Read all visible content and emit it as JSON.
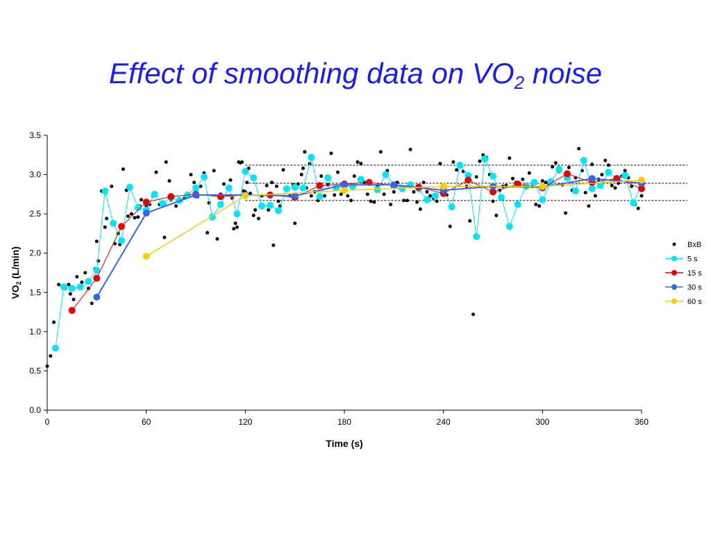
{
  "title": {
    "main": "Effect of smoothing data on VO",
    "sub": "2",
    "tail": " noise"
  },
  "chart_data": {
    "type": "scatter",
    "xlabel": "Time (s)",
    "ylabel_main": "VO",
    "ylabel_sub": "2",
    "ylabel_tail": " (L/min)",
    "xlim": [
      0,
      360
    ],
    "ylim": [
      0,
      3.5
    ],
    "x_ticks": [
      "0",
      "60",
      "120",
      "180",
      "240",
      "300",
      "360"
    ],
    "y_ticks": [
      "0.0",
      "0.5",
      "1.0",
      "1.5",
      "2.0",
      "2.5",
      "3.0",
      "3.5"
    ],
    "grid": false,
    "legend_position": "right",
    "reference_lines": [
      2.67,
      2.89,
      3.12
    ],
    "colors": {
      "bxb": "#000000",
      "s5": "#00e5ff",
      "s15": "#e60000",
      "s30": "#3366ee",
      "s60": "#ffcc00"
    },
    "series": [
      {
        "name": "BxB",
        "style": "markers",
        "points": [
          [
            0,
            0.56
          ],
          [
            2,
            0.69
          ],
          [
            4,
            1.12
          ],
          [
            7,
            1.6
          ],
          [
            9,
            1.58
          ],
          [
            11,
            1.55
          ],
          [
            13,
            1.6
          ],
          [
            14,
            1.48
          ],
          [
            16,
            1.41
          ],
          [
            18,
            1.7
          ],
          [
            21,
            1.63
          ],
          [
            23,
            1.75
          ],
          [
            25,
            1.55
          ],
          [
            27,
            1.36
          ],
          [
            29,
            1.8
          ],
          [
            30,
            2.15
          ],
          [
            31,
            1.9
          ],
          [
            33,
            2.79
          ],
          [
            35,
            2.33
          ],
          [
            36,
            2.44
          ],
          [
            39,
            2.85
          ],
          [
            41,
            2.12
          ],
          [
            43,
            2.25
          ],
          [
            44,
            2.11
          ],
          [
            46,
            3.07
          ],
          [
            48,
            2.8
          ],
          [
            49,
            2.47
          ],
          [
            51,
            2.5
          ],
          [
            53,
            2.45
          ],
          [
            55,
            2.46
          ],
          [
            56,
            2.6
          ],
          [
            57,
            2.68
          ],
          [
            60,
            2.6
          ],
          [
            62,
            2.62
          ],
          [
            64,
            2.73
          ],
          [
            66,
            3.03
          ],
          [
            68,
            2.62
          ],
          [
            71,
            2.2
          ],
          [
            72,
            3.16
          ],
          [
            74,
            2.92
          ],
          [
            75,
            2.68
          ],
          [
            78,
            2.6
          ],
          [
            81,
            2.67
          ],
          [
            83,
            2.7
          ],
          [
            85,
            2.75
          ],
          [
            87,
            3.0
          ],
          [
            89,
            2.9
          ],
          [
            91,
            2.72
          ],
          [
            93,
            2.85
          ],
          [
            95,
            3.02
          ],
          [
            97,
            2.26
          ],
          [
            98,
            2.64
          ],
          [
            101,
            3.05
          ],
          [
            103,
            2.18
          ],
          [
            105,
            2.75
          ],
          [
            107,
            2.88
          ],
          [
            110,
            2.85
          ],
          [
            111,
            2.93
          ],
          [
            112,
            2.7
          ],
          [
            113,
            2.31
          ],
          [
            114,
            2.38
          ],
          [
            115,
            2.33
          ],
          [
            116,
            3.16
          ],
          [
            117,
            3.15
          ],
          [
            118,
            3.16
          ],
          [
            119,
            2.79
          ],
          [
            120,
            2.78
          ],
          [
            121,
            2.9
          ],
          [
            122,
            3.08
          ],
          [
            123,
            2.76
          ],
          [
            125,
            2.48
          ],
          [
            126,
            2.55
          ],
          [
            128,
            2.44
          ],
          [
            130,
            2.73
          ],
          [
            131,
            2.6
          ],
          [
            133,
            2.86
          ],
          [
            134,
            2.55
          ],
          [
            136,
            2.9
          ],
          [
            137,
            2.1
          ],
          [
            139,
            2.85
          ],
          [
            140,
            2.66
          ],
          [
            141,
            2.6
          ],
          [
            143,
            3.06
          ],
          [
            145,
            2.82
          ],
          [
            147,
            2.73
          ],
          [
            149,
            2.87
          ],
          [
            150,
            2.38
          ],
          [
            152,
            2.88
          ],
          [
            154,
            3.0
          ],
          [
            155,
            3.08
          ],
          [
            156,
            3.29
          ],
          [
            157,
            2.83
          ],
          [
            159,
            3.14
          ],
          [
            160,
            2.73
          ],
          [
            162,
            2.78
          ],
          [
            164,
            2.67
          ],
          [
            166,
            2.98
          ],
          [
            168,
            2.73
          ],
          [
            170,
            2.87
          ],
          [
            172,
            3.27
          ],
          [
            174,
            2.74
          ],
          [
            176,
            3.03
          ],
          [
            178,
            2.75
          ],
          [
            180,
            2.85
          ],
          [
            182,
            2.73
          ],
          [
            184,
            2.67
          ],
          [
            186,
            2.98
          ],
          [
            188,
            3.16
          ],
          [
            190,
            3.14
          ],
          [
            192,
            2.9
          ],
          [
            194,
            2.75
          ],
          [
            196,
            2.66
          ],
          [
            198,
            2.65
          ],
          [
            200,
            2.85
          ],
          [
            202,
            3.29
          ],
          [
            204,
            2.75
          ],
          [
            206,
            3.05
          ],
          [
            208,
            2.62
          ],
          [
            210,
            2.78
          ],
          [
            212,
            2.9
          ],
          [
            214,
            2.82
          ],
          [
            216,
            2.67
          ],
          [
            218,
            2.67
          ],
          [
            220,
            3.32
          ],
          [
            222,
            2.78
          ],
          [
            224,
            2.65
          ],
          [
            226,
            2.56
          ],
          [
            228,
            2.9
          ],
          [
            230,
            2.78
          ],
          [
            232,
            2.73
          ],
          [
            234,
            2.7
          ],
          [
            236,
            2.66
          ],
          [
            238,
            3.14
          ],
          [
            240,
            2.8
          ],
          [
            242,
            2.74
          ],
          [
            244,
            2.34
          ],
          [
            246,
            3.16
          ],
          [
            248,
            3.06
          ],
          [
            250,
            3.14
          ],
          [
            252,
            3.04
          ],
          [
            254,
            2.85
          ],
          [
            256,
            2.41
          ],
          [
            258,
            1.22
          ],
          [
            260,
            2.97
          ],
          [
            262,
            3.17
          ],
          [
            264,
            3.25
          ],
          [
            266,
            3.22
          ],
          [
            268,
            3.0
          ],
          [
            270,
            2.66
          ],
          [
            272,
            2.48
          ],
          [
            274,
            2.8
          ],
          [
            276,
            2.85
          ],
          [
            278,
            2.86
          ],
          [
            280,
            3.21
          ],
          [
            282,
            2.95
          ],
          [
            284,
            2.9
          ],
          [
            286,
            2.86
          ],
          [
            288,
            2.94
          ],
          [
            290,
            2.87
          ],
          [
            292,
            3.02
          ],
          [
            294,
            2.85
          ],
          [
            296,
            2.62
          ],
          [
            298,
            2.6
          ],
          [
            300,
            2.92
          ],
          [
            302,
            2.9
          ],
          [
            304,
            2.88
          ],
          [
            306,
            3.1
          ],
          [
            308,
            3.15
          ],
          [
            310,
            3.04
          ],
          [
            312,
            2.87
          ],
          [
            314,
            2.51
          ],
          [
            316,
            3.09
          ],
          [
            318,
            2.8
          ],
          [
            320,
            2.96
          ],
          [
            322,
            3.33
          ],
          [
            324,
            3.05
          ],
          [
            326,
            2.77
          ],
          [
            328,
            2.6
          ],
          [
            330,
            3.13
          ],
          [
            332,
            2.73
          ],
          [
            334,
            2.94
          ],
          [
            336,
            3.0
          ],
          [
            338,
            3.18
          ],
          [
            340,
            3.12
          ],
          [
            342,
            2.86
          ],
          [
            344,
            2.83
          ],
          [
            346,
            2.89
          ],
          [
            348,
            2.98
          ],
          [
            350,
            3.05
          ],
          [
            352,
            2.96
          ],
          [
            354,
            2.85
          ],
          [
            356,
            2.62
          ],
          [
            358,
            2.57
          ],
          [
            360,
            2.73
          ]
        ]
      },
      {
        "name": "5 s",
        "style": "line-markers",
        "points": [
          [
            5,
            0.79
          ],
          [
            10,
            1.57
          ],
          [
            15,
            1.55
          ],
          [
            20,
            1.57
          ],
          [
            25,
            1.64
          ],
          [
            30,
            1.78
          ],
          [
            35,
            2.79
          ],
          [
            40,
            2.38
          ],
          [
            45,
            2.16
          ],
          [
            50,
            2.84
          ],
          [
            55,
            2.58
          ],
          [
            60,
            2.55
          ],
          [
            65,
            2.75
          ],
          [
            70,
            2.63
          ],
          [
            75,
            2.71
          ],
          [
            80,
            2.67
          ],
          [
            85,
            2.74
          ],
          [
            90,
            2.83
          ],
          [
            95,
            2.97
          ],
          [
            100,
            2.46
          ],
          [
            105,
            2.62
          ],
          [
            110,
            2.83
          ],
          [
            115,
            2.5
          ],
          [
            120,
            3.04
          ],
          [
            125,
            2.96
          ],
          [
            130,
            2.6
          ],
          [
            135,
            2.61
          ],
          [
            140,
            2.54
          ],
          [
            145,
            2.82
          ],
          [
            150,
            2.84
          ],
          [
            155,
            2.83
          ],
          [
            160,
            3.22
          ],
          [
            165,
            2.72
          ],
          [
            170,
            2.96
          ],
          [
            175,
            2.83
          ],
          [
            180,
            2.86
          ],
          [
            185,
            2.85
          ],
          [
            190,
            2.94
          ],
          [
            195,
            2.9
          ],
          [
            200,
            2.81
          ],
          [
            205,
            3.0
          ],
          [
            210,
            2.86
          ],
          [
            215,
            2.82
          ],
          [
            220,
            2.87
          ],
          [
            225,
            2.82
          ],
          [
            230,
            2.68
          ],
          [
            235,
            2.73
          ],
          [
            240,
            2.81
          ],
          [
            245,
            2.59
          ],
          [
            250,
            3.12
          ],
          [
            255,
            2.99
          ],
          [
            260,
            2.21
          ],
          [
            265,
            3.2
          ],
          [
            270,
            2.98
          ],
          [
            275,
            2.71
          ],
          [
            280,
            2.34
          ],
          [
            285,
            2.62
          ],
          [
            290,
            2.85
          ],
          [
            295,
            2.9
          ],
          [
            300,
            2.68
          ],
          [
            305,
            2.91
          ],
          [
            310,
            3.07
          ],
          [
            315,
            2.96
          ],
          [
            320,
            2.79
          ],
          [
            325,
            3.18
          ],
          [
            330,
            2.82
          ],
          [
            335,
            2.86
          ],
          [
            340,
            3.03
          ],
          [
            345,
            2.95
          ],
          [
            350,
            2.99
          ],
          [
            355,
            2.64
          ],
          [
            360,
            2.88
          ]
        ]
      },
      {
        "name": "15 s",
        "style": "line-markers",
        "points": [
          [
            15,
            1.27
          ],
          [
            30,
            1.68
          ],
          [
            45,
            2.34
          ],
          [
            60,
            2.65
          ],
          [
            75,
            2.72
          ],
          [
            90,
            2.75
          ],
          [
            105,
            2.72
          ],
          [
            120,
            2.74
          ],
          [
            135,
            2.74
          ],
          [
            150,
            2.71
          ],
          [
            165,
            2.86
          ],
          [
            180,
            2.88
          ],
          [
            195,
            2.9
          ],
          [
            210,
            2.86
          ],
          [
            225,
            2.84
          ],
          [
            240,
            2.76
          ],
          [
            255,
            2.93
          ],
          [
            270,
            2.78
          ],
          [
            285,
            2.88
          ],
          [
            300,
            2.83
          ],
          [
            315,
            3.01
          ],
          [
            330,
            2.9
          ],
          [
            345,
            2.95
          ],
          [
            360,
            2.82
          ]
        ]
      },
      {
        "name": "30 s",
        "style": "line-markers",
        "points": [
          [
            30,
            1.44
          ],
          [
            60,
            2.51
          ],
          [
            90,
            2.74
          ],
          [
            120,
            2.74
          ],
          [
            150,
            2.73
          ],
          [
            180,
            2.87
          ],
          [
            210,
            2.87
          ],
          [
            240,
            2.8
          ],
          [
            270,
            2.85
          ],
          [
            300,
            2.84
          ],
          [
            330,
            2.95
          ],
          [
            360,
            2.89
          ]
        ]
      },
      {
        "name": "60 s",
        "style": "line-markers",
        "points": [
          [
            60,
            1.96
          ],
          [
            120,
            2.73
          ],
          [
            180,
            2.8
          ],
          [
            240,
            2.85
          ],
          [
            300,
            2.85
          ],
          [
            360,
            2.93
          ]
        ]
      }
    ]
  }
}
